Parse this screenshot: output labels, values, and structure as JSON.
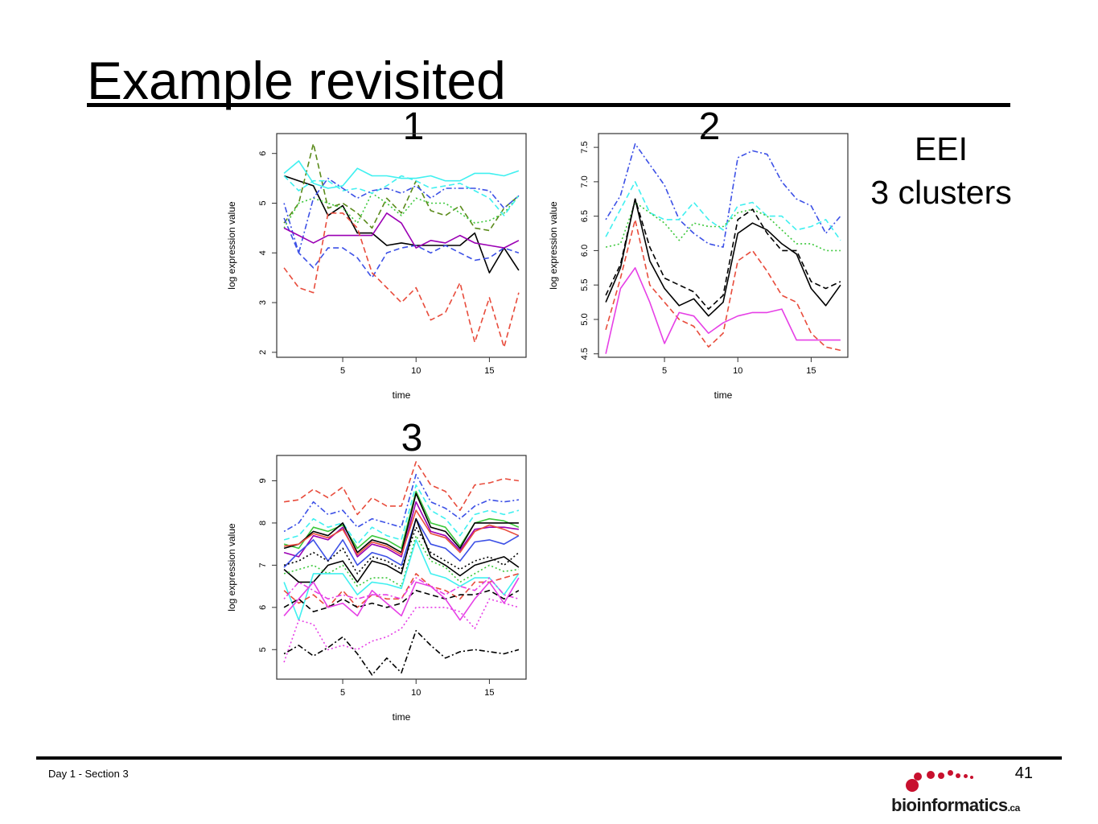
{
  "slide": {
    "title": "Example revisited",
    "side_note": [
      "EEI",
      "3 clusters"
    ],
    "footer_left": "Day 1 - Section 3",
    "page_number": "41",
    "logo": {
      "main": "bioinformatics",
      "suffix": ".ca",
      "color": "#c8102e"
    }
  },
  "chart_data": [
    {
      "panel_label": "1",
      "type": "line",
      "xlabel": "time",
      "ylabel": "log expression value",
      "xlim": [
        0.5,
        17.5
      ],
      "ylim": [
        1.9,
        6.4
      ],
      "xticks": [
        5,
        10,
        15
      ],
      "yticks": [
        2,
        3,
        4,
        5,
        6
      ],
      "x": [
        1,
        2,
        3,
        4,
        5,
        6,
        7,
        8,
        9,
        10,
        11,
        12,
        13,
        14,
        15,
        16,
        17
      ],
      "series": [
        {
          "color": "#000000",
          "dash": "solid",
          "values": [
            5.55,
            5.45,
            5.35,
            4.75,
            4.95,
            4.4,
            4.4,
            4.15,
            4.2,
            4.15,
            4.15,
            4.15,
            4.15,
            4.4,
            3.6,
            4.1,
            3.65
          ]
        },
        {
          "color": "#5a8a1a",
          "dash": "dashed",
          "values": [
            4.6,
            5.0,
            6.2,
            4.9,
            5.0,
            4.8,
            4.5,
            5.1,
            4.8,
            5.45,
            4.85,
            4.75,
            4.95,
            4.5,
            4.45,
            4.9,
            5.15
          ]
        },
        {
          "color": "#3cc83c",
          "dash": "dotted",
          "values": [
            4.5,
            5.0,
            5.1,
            5.0,
            4.9,
            4.6,
            5.2,
            5.0,
            4.75,
            5.1,
            5.0,
            5.0,
            4.8,
            4.6,
            4.65,
            4.8,
            5.15
          ]
        },
        {
          "color": "#40f0f0",
          "dash": "solid",
          "values": [
            5.6,
            5.85,
            5.4,
            5.3,
            5.35,
            5.7,
            5.55,
            5.55,
            5.5,
            5.5,
            5.55,
            5.45,
            5.45,
            5.6,
            5.6,
            5.55,
            5.65
          ]
        },
        {
          "color": "#40f0f0",
          "dash": "dashed",
          "values": [
            5.55,
            5.25,
            5.45,
            5.45,
            5.25,
            5.3,
            5.2,
            5.35,
            5.55,
            5.45,
            5.3,
            5.35,
            5.4,
            5.25,
            5.1,
            4.75,
            5.15
          ]
        },
        {
          "color": "#3c50e6",
          "dash": "dotdash",
          "values": [
            5.0,
            4.0,
            5.1,
            5.5,
            5.3,
            5.1,
            5.25,
            5.3,
            5.2,
            5.35,
            5.1,
            5.3,
            5.3,
            5.3,
            5.25,
            4.9,
            5.15
          ]
        },
        {
          "color": "#3c50e6",
          "dash": "dashed",
          "values": [
            4.7,
            4.0,
            3.7,
            4.1,
            4.1,
            3.9,
            3.5,
            4.0,
            4.1,
            4.15,
            4.0,
            4.15,
            4.0,
            3.85,
            3.9,
            4.1,
            4.0
          ]
        },
        {
          "color": "#9b00b4",
          "dash": "solid",
          "values": [
            4.5,
            4.35,
            4.2,
            4.35,
            4.35,
            4.35,
            4.35,
            4.8,
            4.6,
            4.1,
            4.25,
            4.2,
            4.35,
            4.2,
            4.15,
            4.1,
            4.25
          ]
        },
        {
          "color": "#e84c3c",
          "dash": "dashed",
          "values": [
            3.7,
            3.3,
            3.2,
            4.8,
            4.8,
            4.5,
            3.6,
            3.3,
            3.0,
            3.3,
            2.65,
            2.8,
            3.4,
            2.2,
            3.1,
            2.1,
            3.2
          ]
        }
      ]
    },
    {
      "panel_label": "2",
      "type": "line",
      "xlabel": "time",
      "ylabel": "log expression value",
      "xlim": [
        0.5,
        17.5
      ],
      "ylim": [
        4.45,
        7.7
      ],
      "xticks": [
        5,
        10,
        15
      ],
      "yticks": [
        4.5,
        5.0,
        5.5,
        6.0,
        6.5,
        7.0,
        7.5
      ],
      "x": [
        1,
        2,
        3,
        4,
        5,
        6,
        7,
        8,
        9,
        10,
        11,
        12,
        13,
        14,
        15,
        16,
        17
      ],
      "series": [
        {
          "color": "#3c50e6",
          "dash": "dotdash",
          "values": [
            6.45,
            6.8,
            7.55,
            7.25,
            6.95,
            6.45,
            6.25,
            6.1,
            6.05,
            7.35,
            7.45,
            7.4,
            7.0,
            6.75,
            6.65,
            6.25,
            6.5
          ]
        },
        {
          "color": "#40f0f0",
          "dash": "dashed",
          "values": [
            6.2,
            6.6,
            7.0,
            6.55,
            6.45,
            6.45,
            6.7,
            6.45,
            6.3,
            6.65,
            6.7,
            6.5,
            6.5,
            6.3,
            6.35,
            6.45,
            6.15
          ]
        },
        {
          "color": "#3cc83c",
          "dash": "dotted",
          "values": [
            6.05,
            6.1,
            6.7,
            6.55,
            6.4,
            6.15,
            6.4,
            6.35,
            6.35,
            6.55,
            6.6,
            6.5,
            6.3,
            6.1,
            6.1,
            6.0,
            6.0
          ]
        },
        {
          "color": "#000000",
          "dash": "dashed",
          "values": [
            5.35,
            5.8,
            6.75,
            6.05,
            5.6,
            5.5,
            5.4,
            5.15,
            5.35,
            6.45,
            6.6,
            6.25,
            6.0,
            6.0,
            5.55,
            5.45,
            5.55
          ]
        },
        {
          "color": "#000000",
          "dash": "solid",
          "values": [
            5.25,
            5.75,
            6.75,
            5.85,
            5.45,
            5.2,
            5.3,
            5.05,
            5.25,
            6.25,
            6.4,
            6.3,
            6.1,
            5.95,
            5.45,
            5.2,
            5.5
          ]
        },
        {
          "color": "#e84c3c",
          "dash": "dashed",
          "values": [
            4.85,
            5.6,
            6.45,
            5.5,
            5.25,
            5.0,
            4.9,
            4.6,
            4.8,
            5.85,
            6.0,
            5.7,
            5.35,
            5.25,
            4.8,
            4.6,
            4.55
          ]
        },
        {
          "color": "#e640e6",
          "dash": "solid",
          "values": [
            4.5,
            5.45,
            5.75,
            5.25,
            4.65,
            5.1,
            5.05,
            4.8,
            4.95,
            5.05,
            5.1,
            5.1,
            5.15,
            4.7,
            4.7,
            4.7,
            4.7
          ]
        }
      ]
    },
    {
      "panel_label": "3",
      "type": "line",
      "xlabel": "time",
      "ylabel": "log expression value",
      "xlim": [
        0.5,
        17.5
      ],
      "ylim": [
        4.3,
        9.6
      ],
      "xticks": [
        5,
        10,
        15
      ],
      "yticks": [
        5,
        6,
        7,
        8,
        9
      ],
      "x": [
        1,
        2,
        3,
        4,
        5,
        6,
        7,
        8,
        9,
        10,
        11,
        12,
        13,
        14,
        15,
        16,
        17
      ],
      "series": [
        {
          "color": "#e84c3c",
          "dash": "dashed",
          "values": [
            8.5,
            8.55,
            8.8,
            8.6,
            8.85,
            8.2,
            8.6,
            8.4,
            8.4,
            9.45,
            8.9,
            8.75,
            8.3,
            8.9,
            8.95,
            9.05,
            9.0
          ]
        },
        {
          "color": "#3c50e6",
          "dash": "dotdash",
          "values": [
            7.8,
            8.0,
            8.5,
            8.2,
            8.3,
            7.9,
            8.1,
            8.0,
            7.9,
            9.15,
            8.5,
            8.35,
            8.1,
            8.4,
            8.55,
            8.5,
            8.55
          ]
        },
        {
          "color": "#40f0f0",
          "dash": "dashed",
          "values": [
            7.6,
            7.7,
            8.1,
            7.9,
            8.0,
            7.5,
            7.9,
            7.7,
            7.6,
            8.9,
            8.3,
            8.1,
            7.7,
            8.2,
            8.3,
            8.2,
            8.3
          ]
        },
        {
          "color": "#3cc83c",
          "dash": "solid",
          "values": [
            7.5,
            7.4,
            7.9,
            7.8,
            7.95,
            7.4,
            7.7,
            7.6,
            7.4,
            8.75,
            8.0,
            7.9,
            7.45,
            8.0,
            8.1,
            8.05,
            7.9
          ]
        },
        {
          "color": "#000000",
          "dash": "solid",
          "values": [
            7.4,
            7.5,
            7.8,
            7.7,
            8.0,
            7.3,
            7.6,
            7.5,
            7.3,
            8.7,
            7.9,
            7.8,
            7.4,
            8.0,
            8.0,
            8.0,
            8.0
          ]
        },
        {
          "color": "#9b00b4",
          "dash": "solid",
          "values": [
            7.3,
            7.2,
            7.7,
            7.6,
            7.9,
            7.2,
            7.5,
            7.4,
            7.2,
            8.5,
            7.8,
            7.7,
            7.35,
            7.85,
            7.9,
            7.9,
            7.85
          ]
        },
        {
          "color": "#e84c3c",
          "dash": "solid",
          "values": [
            7.45,
            7.5,
            7.75,
            7.65,
            7.85,
            7.25,
            7.55,
            7.45,
            7.25,
            8.3,
            7.75,
            7.65,
            7.3,
            7.8,
            7.95,
            7.85,
            7.7
          ]
        },
        {
          "color": "#3c50e6",
          "dash": "solid",
          "values": [
            6.95,
            7.3,
            7.6,
            7.1,
            7.6,
            7.0,
            7.3,
            7.2,
            7.0,
            8.1,
            7.5,
            7.4,
            7.1,
            7.55,
            7.6,
            7.5,
            7.7
          ]
        },
        {
          "color": "#000000",
          "dash": "solid",
          "values": [
            6.9,
            6.6,
            6.6,
            7.0,
            7.1,
            6.6,
            7.1,
            7.0,
            6.8,
            8.1,
            7.2,
            7.0,
            6.75,
            7.0,
            7.1,
            7.2,
            6.95
          ]
        },
        {
          "color": "#000000",
          "dash": "dotted",
          "values": [
            7.0,
            7.1,
            7.3,
            7.1,
            7.4,
            6.8,
            7.2,
            7.1,
            6.9,
            7.9,
            7.3,
            7.1,
            6.9,
            7.1,
            7.2,
            7.0,
            7.3
          ]
        },
        {
          "color": "#3cc83c",
          "dash": "dotted",
          "values": [
            6.8,
            6.9,
            7.0,
            6.8,
            7.0,
            6.5,
            6.7,
            6.7,
            6.5,
            7.7,
            7.1,
            6.95,
            6.6,
            6.8,
            7.0,
            6.85,
            6.9
          ]
        },
        {
          "color": "#40f0f0",
          "dash": "solid",
          "values": [
            6.6,
            5.7,
            6.8,
            6.8,
            6.8,
            6.3,
            6.6,
            6.55,
            6.45,
            7.6,
            6.8,
            6.7,
            6.5,
            6.7,
            6.7,
            6.3,
            6.8
          ]
        },
        {
          "color": "#e84c3c",
          "dash": "dashed",
          "values": [
            6.4,
            6.1,
            6.3,
            6.0,
            6.4,
            6.0,
            6.3,
            6.2,
            6.2,
            6.8,
            6.5,
            6.4,
            6.2,
            6.6,
            6.6,
            6.7,
            6.8
          ]
        },
        {
          "color": "#e640e6",
          "dash": "dotdash",
          "values": [
            6.2,
            6.6,
            6.4,
            6.2,
            6.3,
            6.2,
            6.3,
            6.3,
            6.2,
            6.7,
            6.5,
            6.3,
            6.5,
            6.4,
            6.7,
            6.3,
            6.2
          ]
        },
        {
          "color": "#000000",
          "dash": "dashed",
          "values": [
            6.0,
            6.2,
            5.9,
            6.0,
            6.2,
            6.0,
            6.1,
            6.0,
            6.1,
            6.4,
            6.3,
            6.2,
            6.3,
            6.3,
            6.4,
            6.2,
            6.4
          ]
        },
        {
          "color": "#e640e6",
          "dash": "solid",
          "values": [
            5.8,
            6.2,
            6.6,
            6.0,
            6.1,
            5.8,
            6.4,
            6.1,
            5.8,
            6.6,
            6.5,
            6.2,
            5.7,
            6.2,
            6.6,
            6.1,
            6.7
          ]
        },
        {
          "color": "#e640e6",
          "dash": "dotted",
          "values": [
            4.7,
            5.7,
            5.6,
            5.0,
            5.1,
            5.0,
            5.2,
            5.3,
            5.5,
            6.0,
            6.0,
            6.0,
            5.9,
            5.5,
            6.2,
            6.1,
            6.0
          ]
        },
        {
          "color": "#000000",
          "dash": "dotdash",
          "values": [
            4.9,
            5.1,
            4.85,
            5.05,
            5.3,
            4.9,
            4.4,
            4.8,
            4.45,
            5.45,
            5.1,
            4.8,
            4.95,
            5.0,
            4.95,
            4.9,
            5.0
          ]
        }
      ]
    }
  ]
}
